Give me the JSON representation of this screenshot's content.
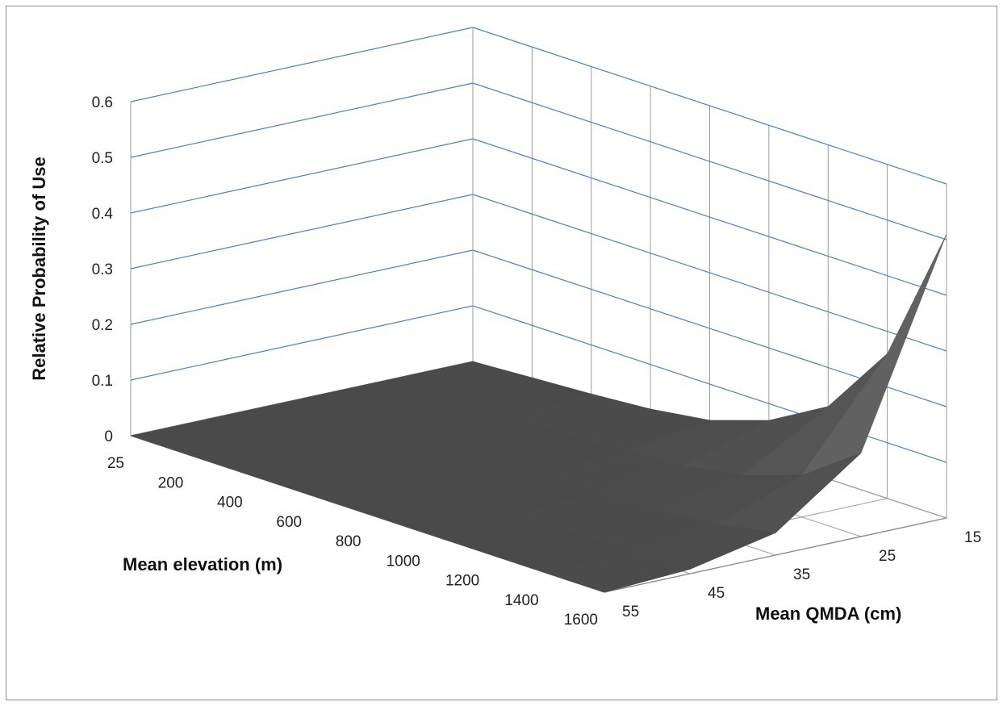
{
  "chart_data": {
    "type": "surface",
    "title": "",
    "zlabel": "Relative Probability of Use",
    "xlabel": "Mean elevation (m)",
    "ylabel": "Mean QMDA (cm)",
    "zlim": [
      0,
      0.6
    ],
    "z_ticks": [
      "0",
      "0.1",
      "0.2",
      "0.3",
      "0.4",
      "0.5",
      "0.6"
    ],
    "elevation": [
      "25",
      "200",
      "400",
      "600",
      "800",
      "1000",
      "1200",
      "1400",
      "1600"
    ],
    "qmda": [
      "55",
      "45",
      "35",
      "25",
      "15"
    ],
    "z": [
      [
        0.0,
        0.0,
        0.0,
        0.0,
        0.0
      ],
      [
        0.0,
        0.0,
        0.001,
        0.002,
        0.006
      ],
      [
        0.0,
        0.0,
        0.002,
        0.004,
        0.012
      ],
      [
        0.0,
        0.001,
        0.003,
        0.007,
        0.02
      ],
      [
        0.0,
        0.001,
        0.004,
        0.012,
        0.035
      ],
      [
        0.0,
        0.002,
        0.007,
        0.022,
        0.07
      ],
      [
        0.0,
        0.003,
        0.012,
        0.04,
        0.13
      ],
      [
        0.0,
        0.005,
        0.02,
        0.075,
        0.26
      ],
      [
        0.0,
        0.008,
        0.04,
        0.15,
        0.51
      ]
    ],
    "grid": true,
    "gridline_color": "#4f81bd",
    "surface_color": "#4a4a4a"
  }
}
